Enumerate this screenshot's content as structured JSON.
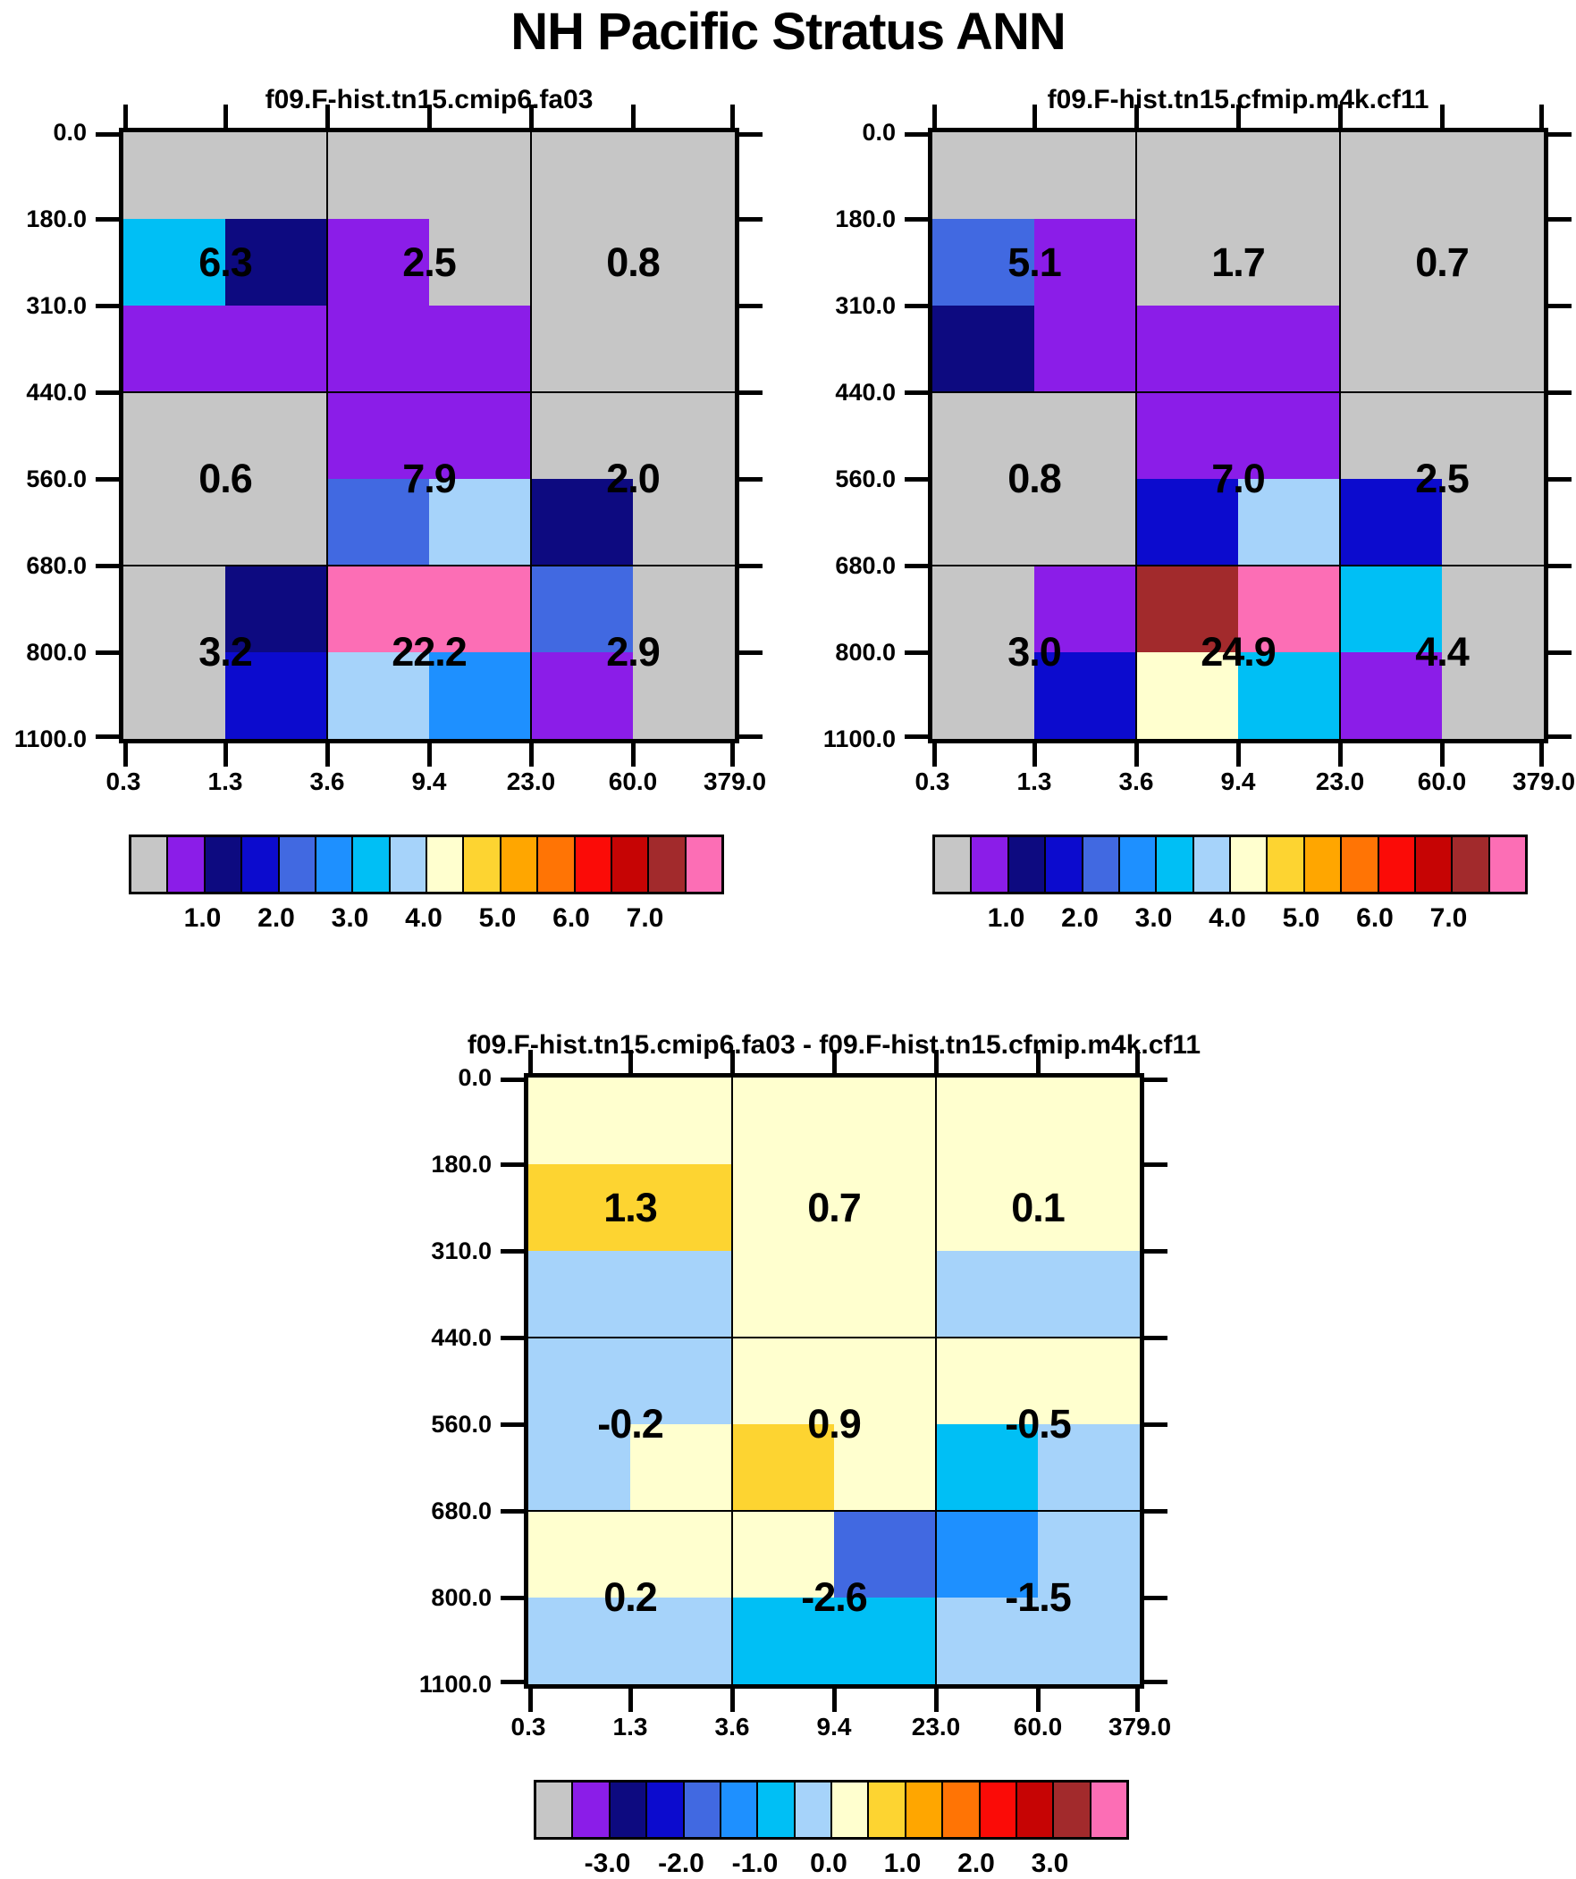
{
  "chart_data": {
    "type": "heatmap",
    "title": "NH Pacific Stratus ANN",
    "x_tick_labels": [
      "0.3",
      "1.3",
      "3.6",
      "9.4",
      "23.0",
      "60.0",
      "379.0"
    ],
    "y_tick_labels": [
      "0.0",
      "180.0",
      "310.0",
      "440.0",
      "560.0",
      "680.0",
      "800.0",
      "1100.0"
    ],
    "palette": [
      "#c6c6c6",
      "#8b1de8",
      "#0d0a80",
      "#0c0bce",
      "#4169e1",
      "#1e90ff",
      "#00bff5",
      "#a6d3fa",
      "#ffffcf",
      "#fdd431",
      "#ffa600",
      "#ff7405",
      "#fb0b07",
      "#c60404",
      "#a22a2c",
      "#fc6eb5"
    ],
    "palette_note": "index 0..15 = gray, purple, navy, blue, royal-blue, dodger-blue, cyan, light-blue, pale-yellow, gold, orange, dark-orange, red, dark-red, brown, pink",
    "panels": [
      {
        "id": "model-a",
        "title": "f09.F-hist.tn15.cmip6.fa03",
        "cells": [
          [
            0,
            0,
            0,
            0,
            0,
            0
          ],
          [
            6,
            2,
            1,
            0,
            0,
            0
          ],
          [
            1,
            1,
            1,
            1,
            0,
            0
          ],
          [
            0,
            0,
            1,
            1,
            0,
            0
          ],
          [
            0,
            0,
            4,
            7,
            2,
            0
          ],
          [
            0,
            2,
            15,
            15,
            4,
            0
          ],
          [
            0,
            3,
            7,
            5,
            1,
            0
          ]
        ],
        "group_values": [
          [
            "6.3",
            "2.5",
            "0.8"
          ],
          [
            "0.6",
            "7.9",
            "2.0"
          ],
          [
            "3.2",
            "22.2",
            "2.9"
          ]
        ],
        "colorbar_labels": [
          "1.0",
          "2.0",
          "3.0",
          "4.0",
          "5.0",
          "6.0",
          "7.0"
        ]
      },
      {
        "id": "model-b",
        "title": "f09.F-hist.tn15.cfmip.m4k.cf11",
        "cells": [
          [
            0,
            0,
            0,
            0,
            0,
            0
          ],
          [
            4,
            1,
            0,
            0,
            0,
            0
          ],
          [
            2,
            1,
            1,
            1,
            0,
            0
          ],
          [
            0,
            0,
            1,
            1,
            0,
            0
          ],
          [
            0,
            0,
            3,
            7,
            3,
            0
          ],
          [
            0,
            1,
            14,
            15,
            6,
            0
          ],
          [
            0,
            3,
            8,
            6,
            1,
            0
          ]
        ],
        "group_values": [
          [
            "5.1",
            "1.7",
            "0.7"
          ],
          [
            "0.8",
            "7.0",
            "2.5"
          ],
          [
            "3.0",
            "24.9",
            "4.4"
          ]
        ],
        "colorbar_labels": [
          "1.0",
          "2.0",
          "3.0",
          "4.0",
          "5.0",
          "6.0",
          "7.0"
        ]
      },
      {
        "id": "difference",
        "title": "f09.F-hist.tn15.cmip6.fa03 - f09.F-hist.tn15.cfmip.m4k.cf11",
        "cells": [
          [
            8,
            8,
            8,
            8,
            8,
            8
          ],
          [
            9,
            9,
            8,
            8,
            8,
            8
          ],
          [
            7,
            7,
            8,
            8,
            7,
            7
          ],
          [
            7,
            7,
            8,
            8,
            8,
            8
          ],
          [
            7,
            8,
            9,
            8,
            6,
            7
          ],
          [
            8,
            8,
            8,
            4,
            5,
            7
          ],
          [
            7,
            7,
            6,
            6,
            7,
            7
          ]
        ],
        "group_values": [
          [
            "1.3",
            "0.7",
            "0.1"
          ],
          [
            "-0.2",
            "0.9",
            "-0.5"
          ],
          [
            "0.2",
            "-2.6",
            "-1.5"
          ]
        ],
        "colorbar_labels": [
          "-3.0",
          "-2.0",
          "-1.0",
          "0.0",
          "1.0",
          "2.0",
          "3.0"
        ]
      }
    ]
  }
}
